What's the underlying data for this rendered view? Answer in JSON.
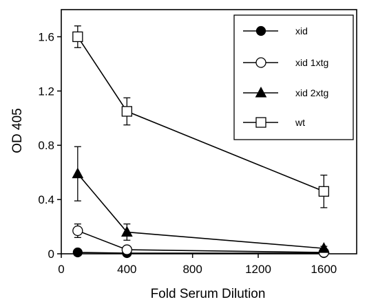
{
  "chart_data": {
    "type": "line",
    "xlabel": "Fold Serum Dilution",
    "ylabel": "OD 405",
    "xlim": [
      0,
      1800
    ],
    "ylim": [
      0,
      1.8
    ],
    "x_ticks": [
      0,
      400,
      800,
      1200,
      1600
    ],
    "x_tick_labels": [
      "0",
      "400",
      "800",
      "1200",
      "1600"
    ],
    "y_ticks": [
      0,
      0.4,
      0.8,
      1.2,
      1.6
    ],
    "y_tick_labels": [
      "0",
      "0.4",
      "0.8",
      "1.2",
      "1.6"
    ],
    "grid": false,
    "legend_position": "top-right",
    "x": [
      100,
      400,
      1600
    ],
    "series": [
      {
        "name": "xid",
        "marker": "filled-circle",
        "values": [
          0.01,
          0.005,
          0.005
        ],
        "errors": [
          0,
          0,
          0
        ]
      },
      {
        "name": "xid 1xtg",
        "marker": "open-circle",
        "values": [
          0.17,
          0.03,
          0.01
        ],
        "errors": [
          0.05,
          0.02,
          0.01
        ]
      },
      {
        "name": "xid 2xtg",
        "marker": "filled-triangle",
        "values": [
          0.59,
          0.16,
          0.04
        ],
        "errors": [
          0.2,
          0.06,
          0.015
        ]
      },
      {
        "name": "wt",
        "marker": "open-square",
        "values": [
          1.6,
          1.05,
          0.46
        ],
        "errors": [
          0.08,
          0.1,
          0.12
        ]
      }
    ],
    "colors": {
      "line": "#000000",
      "background": "#ffffff"
    }
  }
}
